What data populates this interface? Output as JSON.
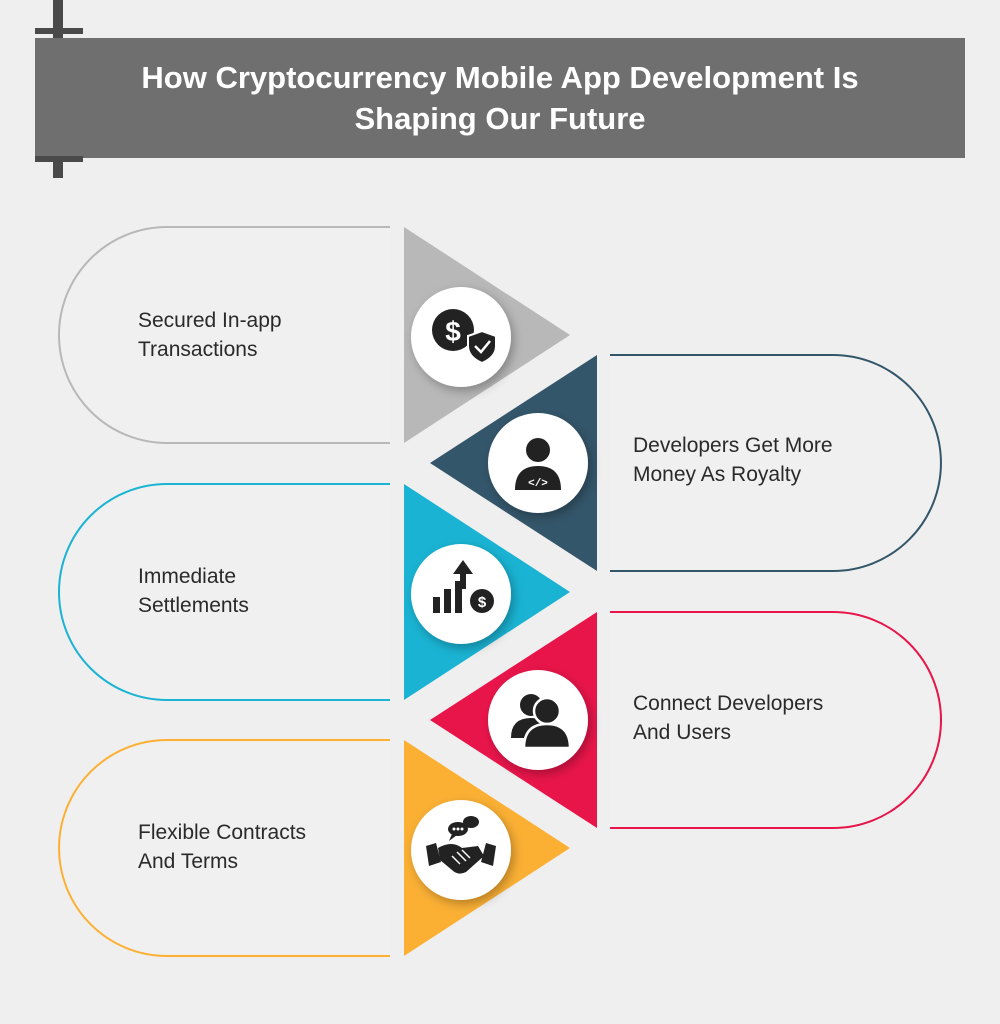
{
  "title": {
    "line1": "How Cryptocurrency Mobile App Development Is",
    "line2": "Shaping Our Future"
  },
  "steps": [
    {
      "line1": "Secured In-app",
      "line2": "Transactions",
      "color": "#b8b8b8",
      "icon": "dollar-shield-icon"
    },
    {
      "line1": "Developers Get More",
      "line2": "Money As Royalty",
      "color": "#34566a",
      "icon": "developer-icon"
    },
    {
      "line1": "Immediate",
      "line2": "Settlements",
      "color": "#1ab3d3",
      "icon": "growth-chart-icon"
    },
    {
      "line1": "Connect Developers",
      "line2": "And Users",
      "color": "#e8154a",
      "icon": "users-icon"
    },
    {
      "line1": "Flexible Contracts",
      "line2": "And Terms",
      "color": "#fbb034",
      "icon": "handshake-icon"
    }
  ]
}
